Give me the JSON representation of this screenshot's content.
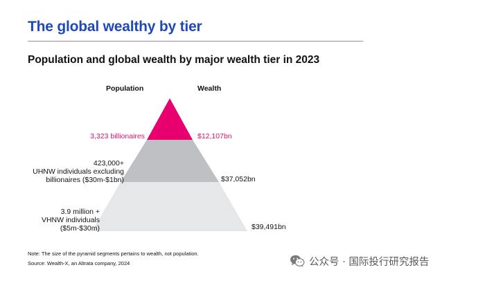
{
  "header": {
    "title": "The global wealthy by tier",
    "subtitle": "Population and global wealth by major wealth tier in 2023"
  },
  "columns": {
    "population": "Population",
    "wealth": "Wealth"
  },
  "tiers": [
    {
      "population_lines": [
        "3,323 billionaires"
      ],
      "wealth": "$12,107bn",
      "wealth_bn": 12107,
      "color": "#e8006f",
      "label_color": "#e0136c"
    },
    {
      "population_lines": [
        "423,000+",
        "UHNW individuals excluding",
        "billionaires ($30m-$1bn)"
      ],
      "wealth": "$37,052bn",
      "wealth_bn": 37052,
      "color": "#bfc0c3",
      "label_color": "#111111"
    },
    {
      "population_lines": [
        "3.9 million +",
        "VHNW individuals",
        "($5m-$30m)"
      ],
      "wealth": "$39,491bn",
      "wealth_bn": 39491,
      "color": "#e6e7e9",
      "label_color": "#111111"
    }
  ],
  "notes": {
    "note": "Note: The size of the pyramid segments pertains to wealth, not population.",
    "source": "Source: Wealth-X, an Altrata company, 2024"
  },
  "watermark": {
    "icon": "wechat-icon",
    "text": "公众号 · 国际投行研究报告"
  },
  "colors": {
    "title": "#1f49b6",
    "accent_pink": "#e8006f"
  }
}
